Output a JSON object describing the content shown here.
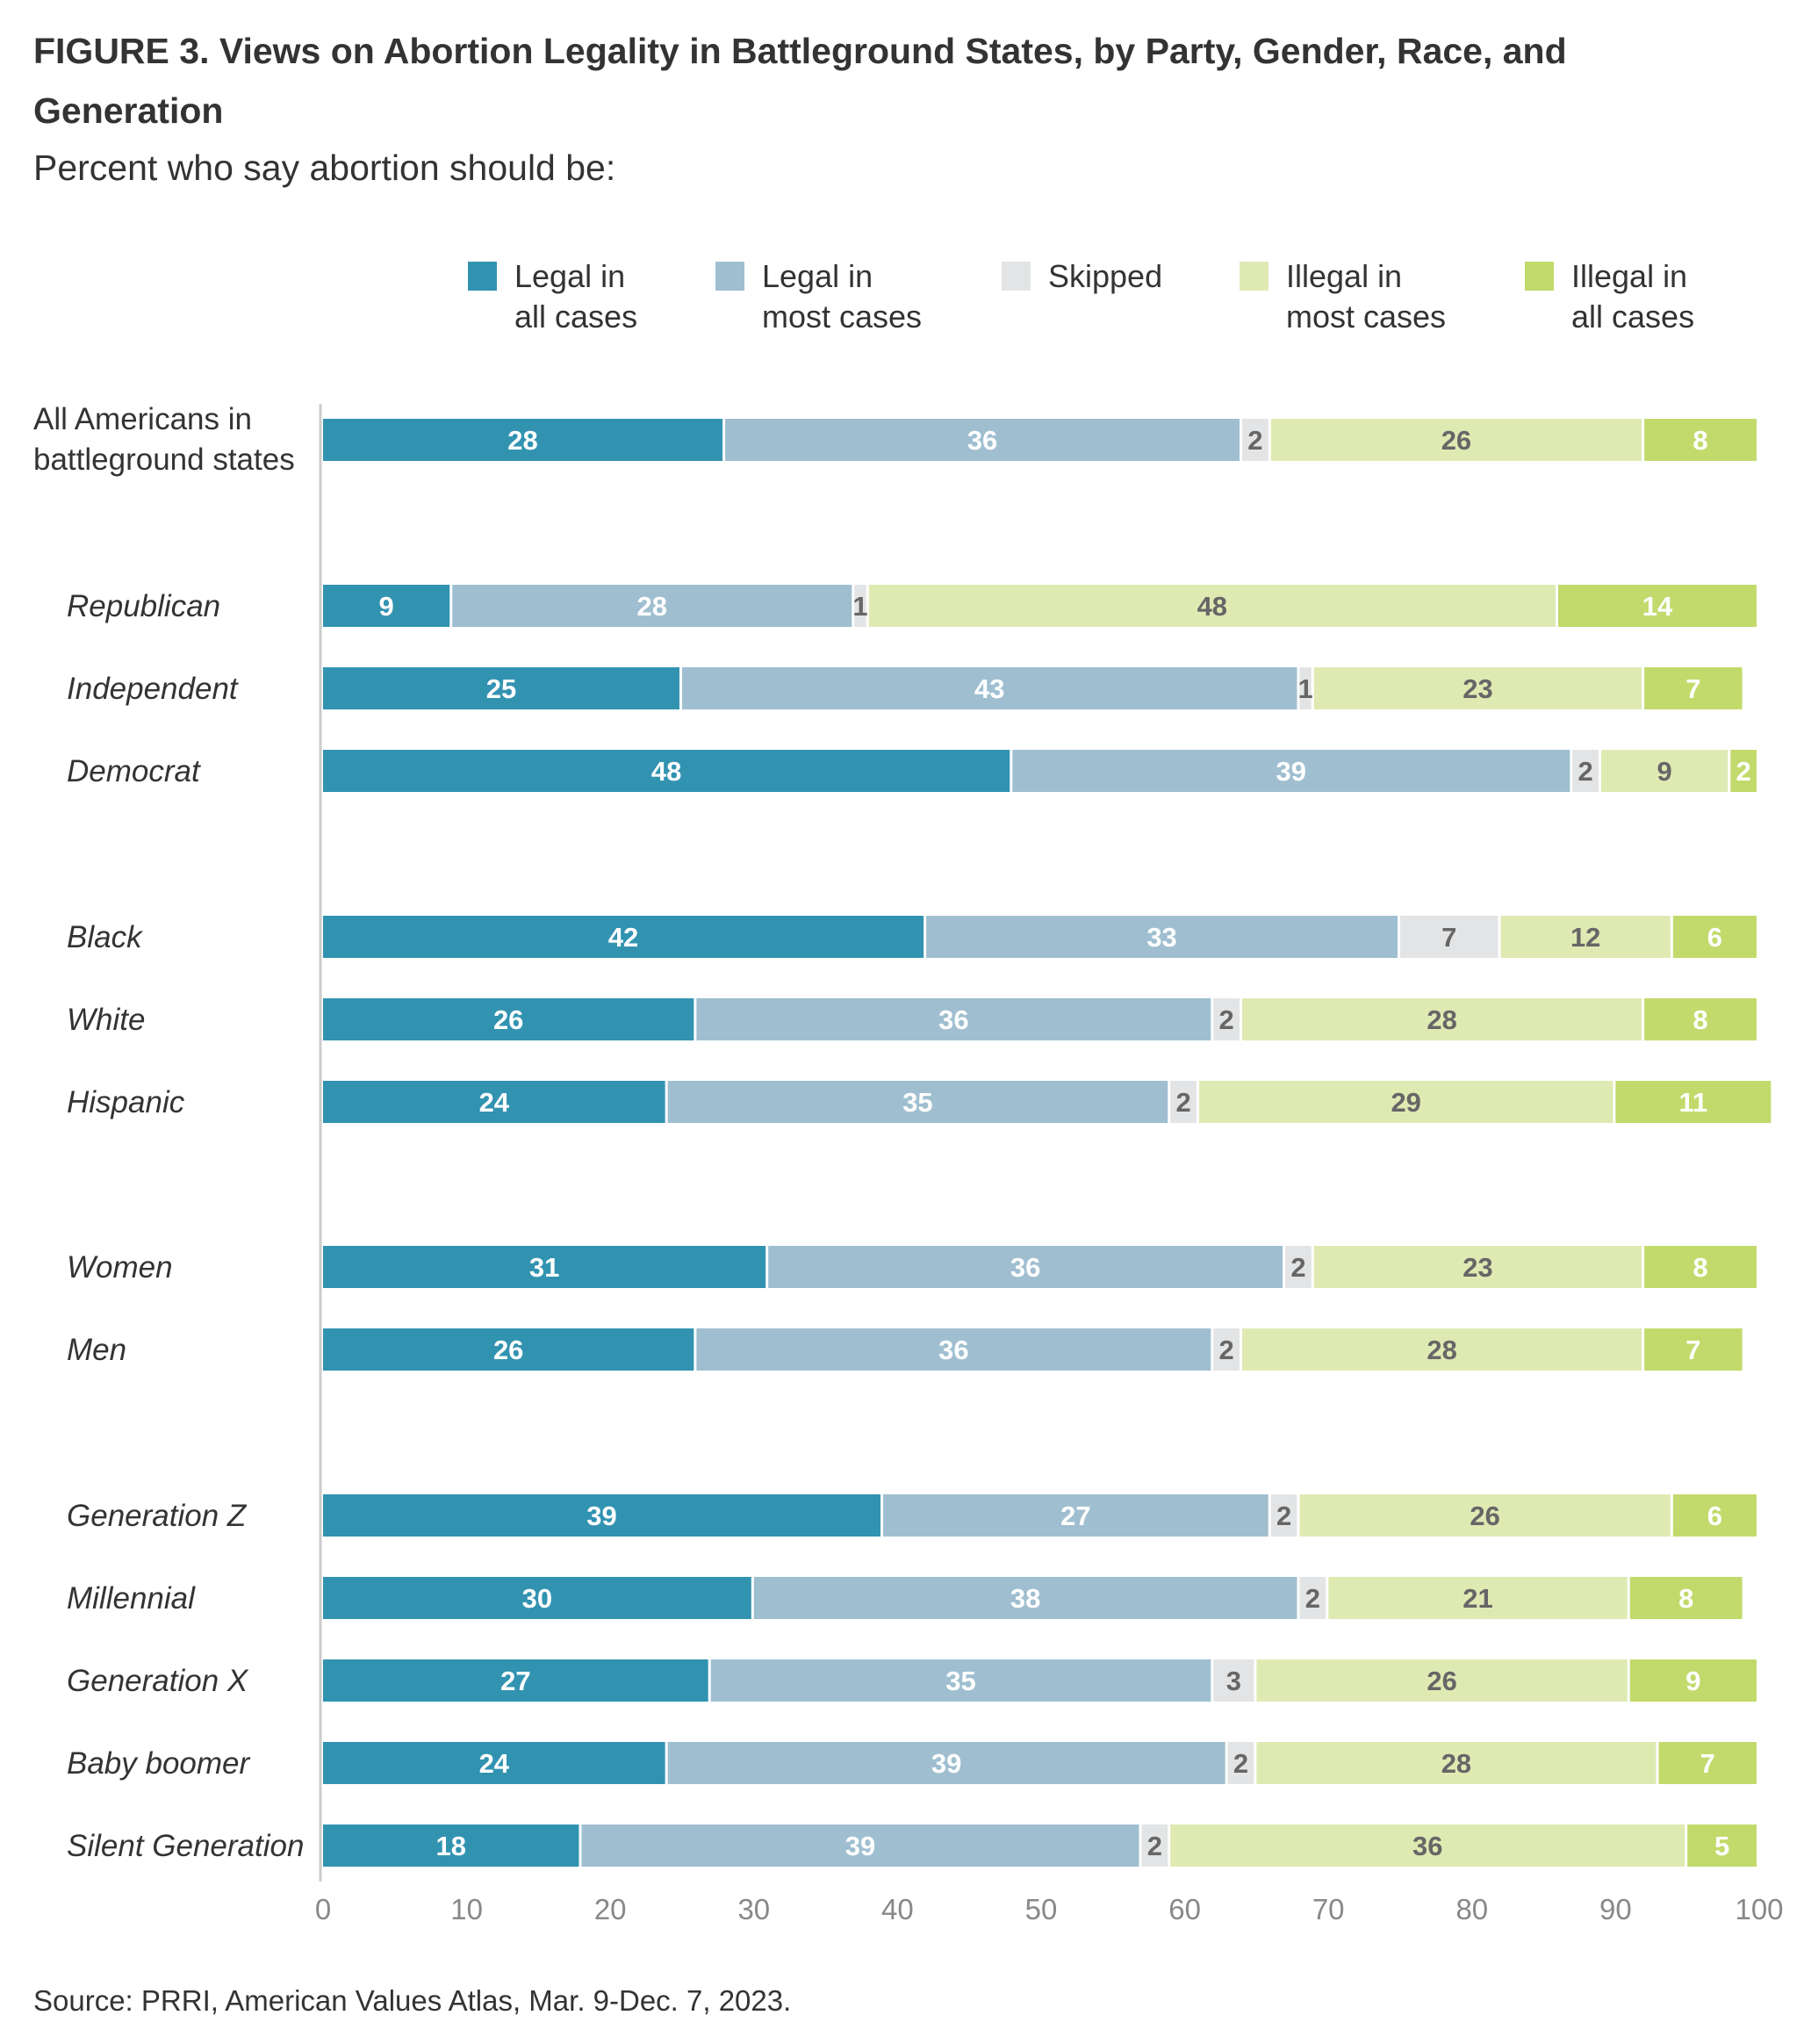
{
  "title": "FIGURE 3. Views on Abortion Legality in Battleground States, by Party, Gender, Race, and Generation",
  "subtitle": "Percent who say abortion should be:",
  "source": "Source: PRRI, American Values Atlas, Mar. 9-Dec. 7, 2023.",
  "chart_data": {
    "type": "bar",
    "orientation": "horizontal",
    "stacked": true,
    "xlim": [
      0,
      100
    ],
    "xticks": [
      "0",
      "10",
      "20",
      "30",
      "40",
      "50",
      "60",
      "70",
      "80",
      "90",
      "100"
    ],
    "legend_position": "top",
    "series": [
      {
        "name": "Legal in\nall cases",
        "color": "#3293b1",
        "label_color": "#ffffff"
      },
      {
        "name": "Legal in\nmost cases",
        "color": "#9fbfd0",
        "label_color": "#ffffff"
      },
      {
        "name": "Skipped",
        "color": "#e3e4e5",
        "label_color": "#666666"
      },
      {
        "name": "Illegal in\nmost cases",
        "color": "#dfeab3",
        "label_color": "#666666"
      },
      {
        "name": "Illegal in\nall cases",
        "color": "#c2da6c",
        "label_color": "#ffffff"
      }
    ],
    "categories": [
      {
        "label": "All Americans in\nbattleground states",
        "italic": false,
        "values": [
          28,
          36,
          2,
          26,
          8
        ]
      },
      {
        "label": "Republican",
        "italic": true,
        "values": [
          9,
          28,
          1,
          48,
          14
        ]
      },
      {
        "label": "Independent",
        "italic": true,
        "values": [
          25,
          43,
          1,
          23,
          7
        ]
      },
      {
        "label": "Democrat",
        "italic": true,
        "values": [
          48,
          39,
          2,
          9,
          2
        ]
      },
      {
        "label": "Black",
        "italic": true,
        "values": [
          42,
          33,
          7,
          12,
          6
        ]
      },
      {
        "label": "White",
        "italic": true,
        "values": [
          26,
          36,
          2,
          28,
          8
        ]
      },
      {
        "label": "Hispanic",
        "italic": true,
        "values": [
          24,
          35,
          2,
          29,
          11
        ]
      },
      {
        "label": "Women",
        "italic": true,
        "values": [
          31,
          36,
          2,
          23,
          8
        ]
      },
      {
        "label": "Men",
        "italic": true,
        "values": [
          26,
          36,
          2,
          28,
          7
        ]
      },
      {
        "label": "Generation Z",
        "italic": true,
        "values": [
          39,
          27,
          2,
          26,
          6
        ]
      },
      {
        "label": "Millennial",
        "italic": true,
        "values": [
          30,
          38,
          2,
          21,
          8
        ]
      },
      {
        "label": "Generation X",
        "italic": true,
        "values": [
          27,
          35,
          3,
          26,
          9
        ]
      },
      {
        "label": "Baby boomer",
        "italic": true,
        "values": [
          24,
          39,
          2,
          28,
          7
        ]
      },
      {
        "label": "Silent Generation",
        "italic": true,
        "values": [
          18,
          39,
          2,
          36,
          5
        ]
      }
    ]
  }
}
